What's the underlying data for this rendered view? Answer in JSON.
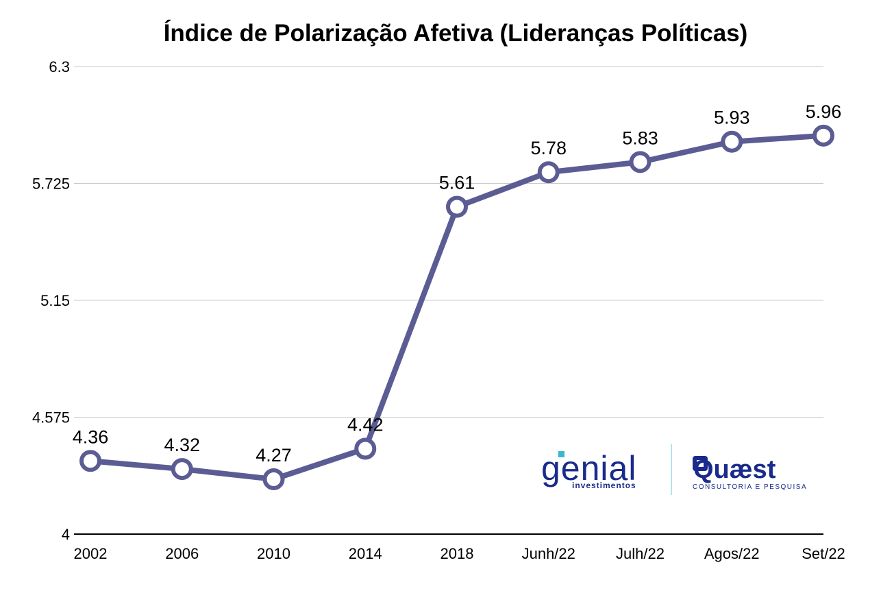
{
  "chart_data": {
    "type": "line",
    "title": "Índice de Polarização Afetiva (Lideranças Políticas)",
    "categories": [
      "2002",
      "2006",
      "2010",
      "2014",
      "2018",
      "Junh/22",
      "Julh/22",
      "Agos/22",
      "Set/22"
    ],
    "series": [
      {
        "values": [
          4.36,
          4.32,
          4.27,
          4.42,
          5.61,
          5.78,
          5.83,
          5.93,
          5.96
        ],
        "labels": [
          "4.36",
          "4.32",
          "4.27",
          "4.42",
          "5.61",
          "5.78",
          "5.83",
          "5.93",
          "5.96"
        ],
        "color": "#5c5c94"
      }
    ],
    "ylim": [
      4,
      6.3
    ],
    "yticks": [
      4,
      4.575,
      5.15,
      5.725,
      6.3
    ],
    "ytick_labels": [
      "4",
      "4.575",
      "5.15",
      "5.725",
      "6.3"
    ],
    "xlabel": "",
    "ylabel": "",
    "grid": true,
    "legend": "none"
  },
  "logos": {
    "genial": {
      "name": "genial",
      "subtitle": "investimentos",
      "color": "#1a2b8c",
      "accent": "#3bb6d0"
    },
    "quaest": {
      "name": "Quæst",
      "subtitle": "CONSULTORIA E PESQUISA",
      "color": "#1a2b8c"
    }
  }
}
